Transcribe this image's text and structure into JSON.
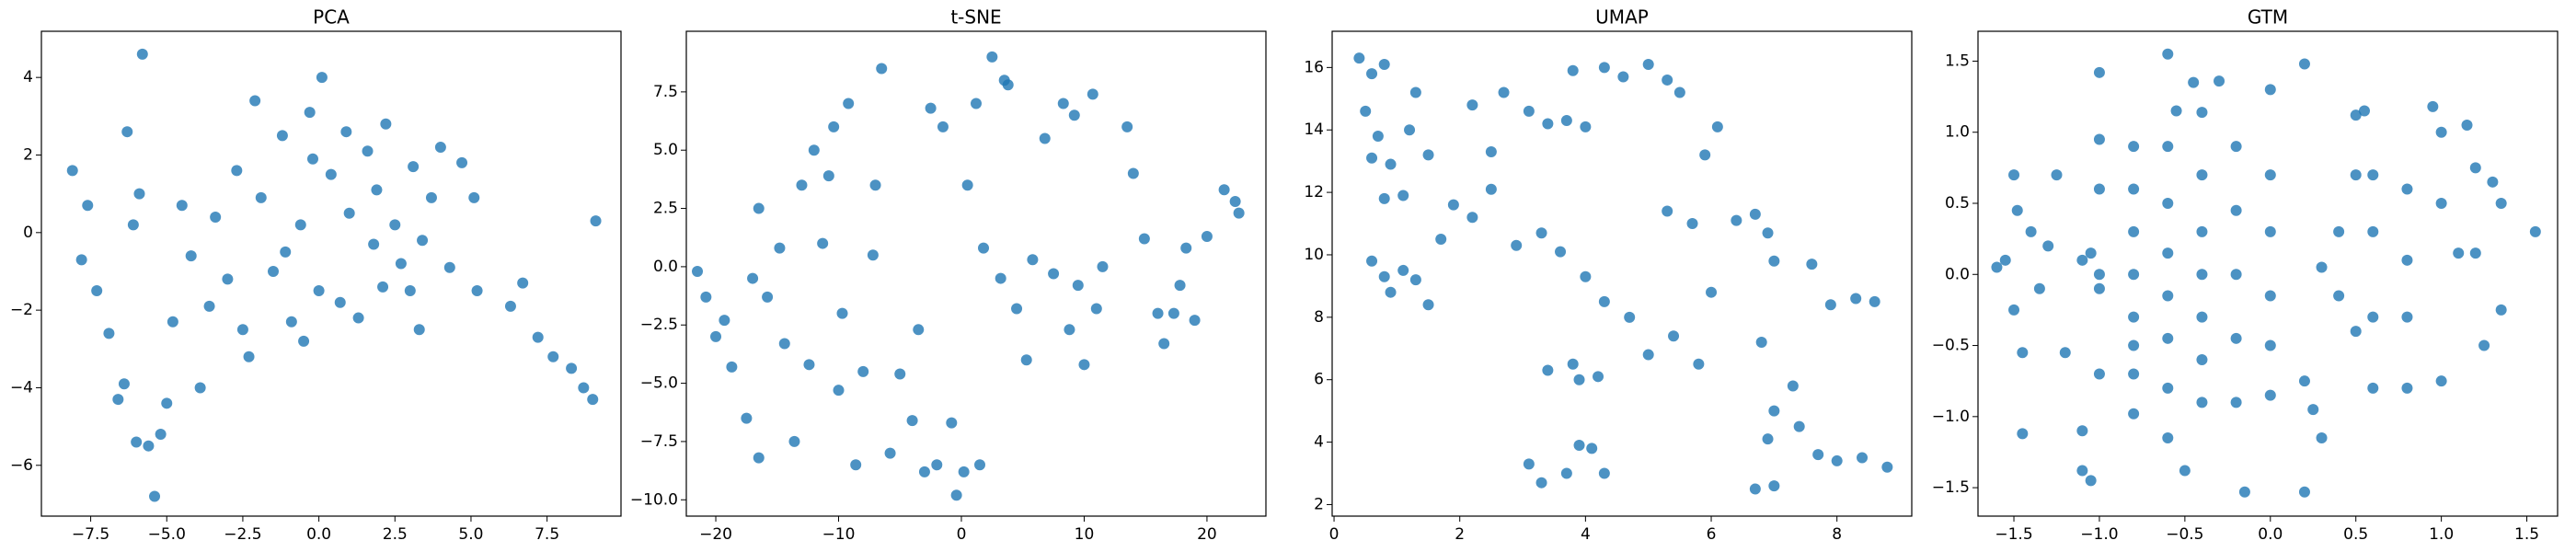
{
  "chart_data": [
    {
      "type": "scatter",
      "title": "PCA",
      "color": "#1f77b4",
      "x": [
        -8.1,
        -7.6,
        -7.8,
        -7.3,
        -6.9,
        -6.6,
        -6.4,
        -6.0,
        -5.6,
        -5.4,
        -5.2,
        -5.8,
        -6.3,
        -5.9,
        -6.1,
        -5.0,
        -4.8,
        -4.2,
        -4.5,
        -3.9,
        -3.4,
        -3.0,
        -2.7,
        -2.5,
        -2.1,
        -1.9,
        -1.5,
        -1.2,
        -0.9,
        -0.6,
        -0.3,
        0.0,
        0.1,
        0.4,
        0.7,
        1.0,
        1.3,
        1.6,
        1.8,
        2.2,
        2.5,
        2.7,
        3.0,
        3.1,
        3.4,
        3.7,
        4.0,
        4.3,
        4.7,
        5.1,
        5.2,
        6.3,
        6.7,
        7.2,
        7.7,
        8.3,
        8.7,
        9.0,
        9.1,
        -2.3,
        -0.5,
        2.1,
        -1.1,
        0.9,
        3.3,
        -3.6,
        -0.2,
        1.9
      ],
      "y": [
        1.6,
        0.7,
        -0.7,
        -1.5,
        -2.6,
        -4.3,
        -3.9,
        -5.4,
        -5.5,
        -6.8,
        -5.2,
        4.6,
        2.6,
        1.0,
        0.2,
        -4.4,
        -2.3,
        -0.6,
        0.7,
        -4.0,
        0.4,
        -1.2,
        1.6,
        -2.5,
        3.4,
        0.9,
        -1.0,
        2.5,
        -2.3,
        0.2,
        3.1,
        -1.5,
        4.0,
        1.5,
        -1.8,
        0.5,
        -2.2,
        2.1,
        -0.3,
        2.8,
        0.2,
        -0.8,
        -1.5,
        1.7,
        -0.2,
        0.9,
        2.2,
        -0.9,
        1.8,
        0.9,
        -1.5,
        -1.9,
        -1.3,
        -2.7,
        -3.2,
        -3.5,
        -4.0,
        -4.3,
        0.3,
        -3.2,
        -2.8,
        -1.4,
        -0.5,
        2.6,
        -2.5,
        -1.9,
        1.9,
        1.1
      ],
      "xlim": [
        -9.12,
        9.93
      ],
      "ylim": [
        -7.31,
        5.19
      ],
      "xticks": [
        {
          "value": -7.5,
          "label": "−7.5"
        },
        {
          "value": -5,
          "label": "−5.0"
        },
        {
          "value": -2.5,
          "label": "−2.5"
        },
        {
          "value": 0,
          "label": "0.0"
        },
        2.5,
        {
          "value": 5,
          "label": "5.0"
        },
        7.5
      ],
      "yticks": [
        {
          "value": -6,
          "label": "−6"
        },
        {
          "value": -4,
          "label": "−4"
        },
        {
          "value": -2,
          "label": "−2"
        },
        0,
        2,
        4
      ]
    },
    {
      "type": "scatter",
      "title": "t-SNE",
      "color": "#1f77b4",
      "x": [
        -21.5,
        -20.8,
        -20,
        -19.3,
        -18.7,
        -17.5,
        -16.5,
        -17,
        -16.5,
        -15.8,
        -14.8,
        -14.4,
        -13.6,
        -13,
        -12.4,
        -12,
        -11.3,
        -10.8,
        -10.4,
        -10,
        -9.7,
        -9.2,
        -8.6,
        -8,
        -7.2,
        -7,
        -6.5,
        -5.8,
        -5,
        -4,
        -3.5,
        -3,
        -2,
        -1.5,
        -0.8,
        -0.4,
        0.2,
        0.5,
        1.2,
        1.5,
        1.8,
        2.5,
        3.2,
        3.8,
        4.5,
        5.3,
        5.8,
        6.8,
        7.5,
        8.3,
        8.8,
        9.2,
        9.5,
        10,
        10.7,
        11,
        11.5,
        13.5,
        14,
        14.9,
        16,
        16.5,
        17.3,
        17.8,
        18.3,
        19,
        20,
        21.4,
        22.3,
        22.6,
        3.5,
        -2.5
      ],
      "y": [
        -0.2,
        -1.3,
        -3,
        -2.3,
        -4.3,
        -6.5,
        -8.2,
        -0.5,
        2.5,
        -1.3,
        0.8,
        -3.3,
        -7.5,
        3.5,
        -4.2,
        5,
        1,
        3.9,
        6,
        -5.3,
        -2,
        7,
        -8.5,
        -4.5,
        0.5,
        3.5,
        8.5,
        -8,
        -4.6,
        -6.6,
        -2.7,
        -8.8,
        -8.5,
        6,
        -6.7,
        -9.8,
        -8.8,
        3.5,
        7,
        -8.5,
        0.8,
        9,
        -0.5,
        7.8,
        -1.8,
        -4,
        0.3,
        5.5,
        -0.3,
        7,
        -2.7,
        6.5,
        -0.8,
        -4.2,
        7.4,
        -1.8,
        0,
        6,
        4,
        1.2,
        -2,
        -3.3,
        -2,
        -0.8,
        0.8,
        -2.3,
        1.3,
        3.3,
        2.8,
        2.3,
        8,
        6.8
      ],
      "xlim": [
        -22.4,
        24.8
      ],
      "ylim": [
        -10.7,
        10.1
      ],
      "xticks": [
        {
          "value": -20,
          "label": "−20"
        },
        {
          "value": -10,
          "label": "−10"
        },
        0,
        10,
        20
      ],
      "yticks": [
        {
          "value": -10,
          "label": "−10.0"
        },
        {
          "value": -7.5,
          "label": "−7.5"
        },
        {
          "value": -5,
          "label": "−5.0"
        },
        {
          "value": -2.5,
          "label": "−2.5"
        },
        {
          "value": 0,
          "label": "0.0"
        },
        2.5,
        {
          "value": 5,
          "label": "5.0"
        },
        7.5
      ]
    },
    {
      "type": "scatter",
      "title": "UMAP",
      "color": "#1f77b4",
      "x": [
        0.4,
        0.6,
        0.8,
        0.5,
        0.7,
        0.6,
        0.9,
        0.8,
        1.1,
        1.2,
        1.3,
        1.5,
        0.6,
        0.8,
        1.1,
        1.3,
        1.5,
        0.9,
        1.7,
        1.9,
        2.2,
        2.5,
        2.9,
        3.3,
        3.6,
        2.2,
        2.7,
        3.1,
        3.4,
        3.7,
        4.0,
        3.8,
        4.3,
        4.6,
        5.0,
        5.3,
        5.5,
        5.9,
        6.1,
        6.4,
        6.7,
        6.9,
        7.0,
        4.0,
        4.3,
        4.7,
        5.0,
        5.4,
        5.8,
        3.8,
        3.4,
        3.9,
        4.2,
        3.1,
        3.3,
        3.7,
        3.9,
        4.3,
        4.1,
        5.3,
        5.7,
        6.8,
        7.3,
        7.0,
        6.9,
        7.4,
        7.0,
        6.7,
        7.7,
        8.0,
        8.4,
        8.8,
        7.9,
        8.3,
        8.6,
        7.6,
        6.0,
        2.5
      ],
      "y": [
        16.3,
        15.8,
        16.1,
        14.6,
        13.8,
        13.1,
        12.9,
        11.8,
        11.9,
        14,
        15.2,
        13.2,
        9.8,
        9.3,
        9.5,
        9.2,
        8.4,
        8.8,
        10.5,
        11.6,
        11.2,
        12.1,
        10.3,
        10.7,
        10.1,
        14.8,
        15.2,
        14.6,
        14.2,
        14.3,
        14.1,
        15.9,
        16,
        15.7,
        16.1,
        15.6,
        15.2,
        13.2,
        14.1,
        11.1,
        11.3,
        10.7,
        9.8,
        9.3,
        8.5,
        8,
        6.8,
        7.4,
        6.5,
        6.5,
        6.3,
        6.0,
        6.1,
        3.3,
        2.7,
        3.0,
        3.9,
        3.0,
        3.8,
        11.4,
        11.0,
        7.2,
        5.8,
        5.0,
        4.1,
        4.5,
        2.6,
        2.5,
        3.6,
        3.4,
        3.5,
        3.2,
        8.4,
        8.6,
        8.5,
        9.7,
        8.8,
        13.3
      ],
      "xlim": [
        -0.03,
        9.19
      ],
      "ylim": [
        1.63,
        17.16
      ],
      "xticks": [
        0,
        2,
        4,
        6,
        8
      ],
      "yticks": [
        2,
        4,
        6,
        8,
        10,
        12,
        14,
        16
      ]
    },
    {
      "type": "scatter",
      "title": "GTM",
      "color": "#1f77b4",
      "x": [
        -1.6,
        -1.55,
        -1.5,
        -1.48,
        -1.45,
        -1.5,
        -1.4,
        -1.35,
        -1.3,
        -1.25,
        -1.2,
        -1.45,
        -1.1,
        -1.1,
        -1.05,
        -1.1,
        -1.05,
        -1.0,
        -1.0,
        -1.0,
        -0.8,
        -0.8,
        -0.8,
        -0.8,
        -0.8,
        -0.8,
        -0.8,
        -0.8,
        -0.6,
        -0.6,
        -0.6,
        -0.6,
        -0.6,
        -0.6,
        -0.6,
        -0.55,
        -0.4,
        -0.4,
        -0.4,
        -0.4,
        -0.4,
        -0.4,
        -0.4,
        -0.5,
        -0.3,
        -0.2,
        -0.2,
        -0.2,
        -0.2,
        -0.2,
        -0.15,
        0.0,
        0.0,
        0.0,
        0.0,
        0.0,
        0.0,
        -0.6,
        -0.45,
        0.2,
        0.2,
        0.25,
        0.3,
        0.2,
        0.3,
        0.4,
        0.4,
        0.5,
        0.5,
        0.55,
        0.5,
        0.6,
        0.6,
        0.6,
        0.6,
        0.8,
        0.8,
        0.8,
        0.8,
        0.95,
        1.0,
        1.0,
        1.0,
        1.1,
        1.15,
        1.2,
        1.3,
        1.35,
        1.25,
        1.35,
        1.55,
        1.2,
        -1.0,
        -1.0,
        -1.0
      ],
      "y": [
        0.05,
        0.1,
        -0.25,
        0.45,
        -0.55,
        0.7,
        0.3,
        -0.1,
        0.2,
        0.7,
        -0.55,
        -1.12,
        -1.1,
        -1.38,
        -1.45,
        0.1,
        0.15,
        -0.1,
        0.0,
        1.42,
        0.9,
        0.6,
        0.3,
        0.0,
        -0.3,
        -0.5,
        -0.7,
        -0.98,
        0.9,
        0.5,
        0.15,
        -0.15,
        -0.45,
        -0.8,
        -1.15,
        1.15,
        1.14,
        0.7,
        0.3,
        0.0,
        -0.3,
        -0.6,
        -0.9,
        -1.38,
        1.36,
        0.9,
        0.45,
        0.0,
        -0.45,
        -0.9,
        -1.53,
        1.3,
        0.7,
        0.3,
        -0.15,
        -0.5,
        -0.85,
        1.55,
        1.35,
        1.48,
        -0.75,
        -0.95,
        -1.15,
        -1.53,
        0.05,
        0.3,
        -0.15,
        0.7,
        -0.4,
        1.15,
        1.12,
        0.7,
        0.3,
        -0.3,
        -0.8,
        0.6,
        0.1,
        -0.3,
        -0.8,
        1.18,
        1.0,
        -0.75,
        0.5,
        0.15,
        1.05,
        0.75,
        0.65,
        0.5,
        -0.5,
        -0.25,
        0.3,
        0.15,
        0.95,
        0.6,
        -0.7
      ],
      "xlim": [
        -1.71,
        1.68
      ],
      "ylim": [
        -1.7,
        1.71
      ],
      "xticks": [
        {
          "value": -1.5,
          "label": "−1.5"
        },
        {
          "value": -1,
          "label": "−1.0"
        },
        {
          "value": -0.5,
          "label": "−0.5"
        },
        {
          "value": 0,
          "label": "0.0"
        },
        0.5,
        {
          "value": 1,
          "label": "1.0"
        },
        1.5
      ],
      "yticks": [
        {
          "value": -1.5,
          "label": "−1.5"
        },
        {
          "value": -1,
          "label": "−1.0"
        },
        {
          "value": -0.5,
          "label": "−0.5"
        },
        {
          "value": 0,
          "label": "0.0"
        },
        0.5,
        {
          "value": 1,
          "label": "1.0"
        },
        1.5
      ]
    }
  ]
}
